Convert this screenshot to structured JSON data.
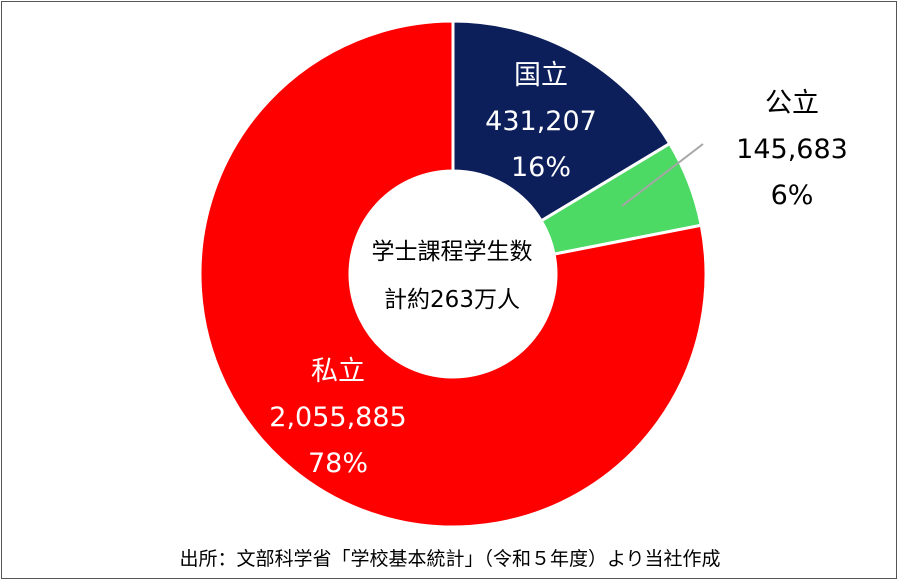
{
  "chart_data": {
    "type": "pie",
    "variant": "donut",
    "center_label": [
      "学士課程学生数",
      "計約263万人"
    ],
    "slices": [
      {
        "name": "国立",
        "value": 431207,
        "value_label": "431,207",
        "percent_label": "16%",
        "color": "#0d1f5a",
        "label_color": "#ffffff"
      },
      {
        "name": "公立",
        "value": 145683,
        "value_label": "145,683",
        "percent_label": "6%",
        "color": "#4cd964",
        "label_color": "#000000"
      },
      {
        "name": "私立",
        "value": 2055885,
        "value_label": "2,055,885",
        "percent_label": "78%",
        "color": "#ff0000",
        "label_color": "#ffffff"
      }
    ],
    "leader_line_color": "#a6a6a6"
  },
  "source": "出所：文部科学省「学校基本統計」（令和５年度）より当社作成"
}
